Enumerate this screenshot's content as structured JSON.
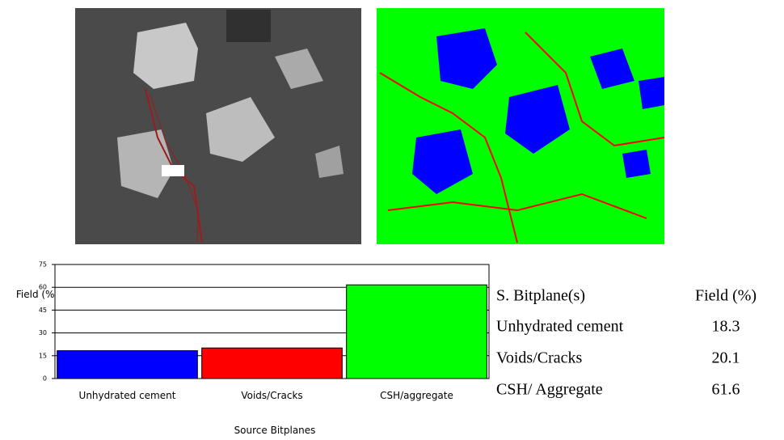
{
  "chart_data": {
    "type": "bar",
    "x_label": "Source Bitplanes",
    "y_label": "Field (%)",
    "categories": [
      "Unhydrated cement",
      "Voids/Cracks",
      "CSH/aggregate"
    ],
    "values": [
      18.3,
      20.1,
      61.6
    ],
    "colors": [
      "#0000ff",
      "#ff0000",
      "#00ff00"
    ],
    "ylim": [
      0,
      75
    ],
    "yticks": [
      0,
      15,
      30,
      45,
      60,
      75
    ],
    "grid": true
  },
  "table": {
    "header": [
      "S. Bitplane(s)",
      "Field (%)"
    ],
    "rows": [
      [
        "Unhydrated cement",
        "18.3"
      ],
      [
        "Voids/Cracks",
        "20.1"
      ],
      [
        "CSH/ Aggregate",
        "61.6"
      ]
    ]
  }
}
